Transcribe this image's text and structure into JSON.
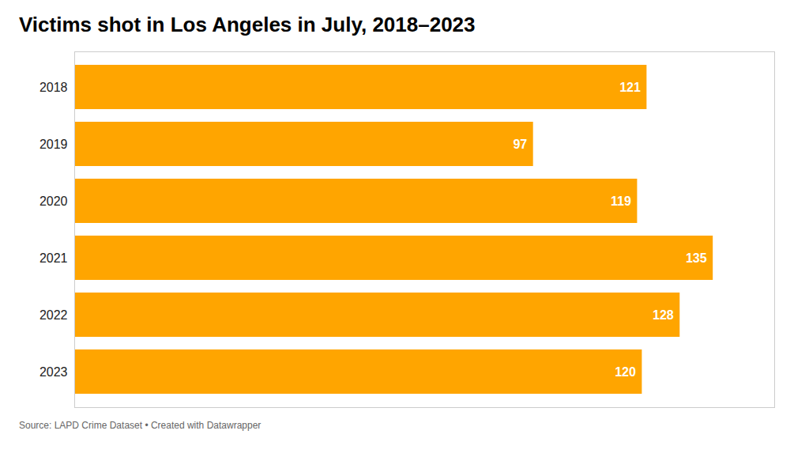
{
  "chart_data": {
    "type": "bar",
    "title": "Victims shot in Los Angeles in July, 2018–2023",
    "categories": [
      "2018",
      "2019",
      "2020",
      "2021",
      "2022",
      "2023"
    ],
    "values": [
      121,
      97,
      119,
      135,
      128,
      120
    ],
    "color": "#FFA500",
    "orientation": "horizontal",
    "data_labels": true,
    "xlim": [
      0,
      148
    ],
    "tick_labels": "y",
    "grid": false,
    "caption": "Source: LAPD Crime Dataset • Created with Datawrapper"
  }
}
